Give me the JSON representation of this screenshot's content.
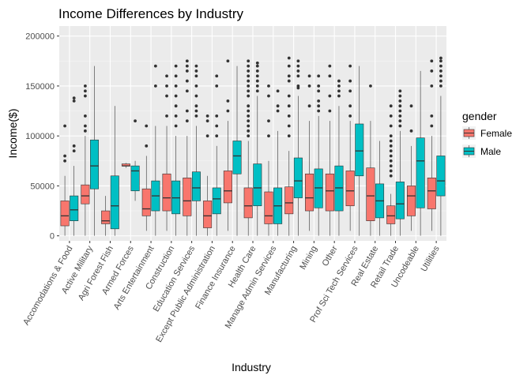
{
  "chart_data": {
    "type": "boxplot",
    "title": "Income Differences by Industry",
    "xlabel": "Industry",
    "ylabel": "Income($)",
    "ylim": [
      -5000,
      210000
    ],
    "yticks": [
      0,
      50000,
      100000,
      150000,
      200000
    ],
    "grid": true,
    "legend_title": "gender",
    "legend_position": "right",
    "categories": [
      "Accomodations & Food",
      "Active Military",
      "Agri Forest Fish",
      "Armed Forces",
      "Arts Entertainment",
      "Construction",
      "Education Services",
      "Except Public Administration",
      "Finance Insurance",
      "Health Care",
      "Manage Admin Services",
      "Manufacturing",
      "Mining",
      "Other",
      "Prof Sci Tech Services",
      "Real Estate",
      "Retail Trade",
      "Uncodeable",
      "Utilities"
    ],
    "series": [
      {
        "name": "Female",
        "color": "#F8766D",
        "boxes": [
          {
            "whisker_low": 0,
            "q1": 10000,
            "median": 20000,
            "q3": 35000,
            "whisker_high": 60000,
            "outliers": [
              75000,
              80000,
              110000
            ]
          },
          {
            "whisker_low": 0,
            "q1": 32000,
            "median": 40000,
            "q3": 51000,
            "whisker_high": 100000,
            "outliers": [
              105000,
              110000,
              120000,
              140000,
              145000,
              150000
            ]
          },
          {
            "whisker_low": 0,
            "q1": 12000,
            "median": 15000,
            "q3": 25000,
            "whisker_high": 40000,
            "outliers": []
          },
          {
            "whisker_low": 68000,
            "q1": 70000,
            "median": 70000,
            "q3": 72000,
            "whisker_high": 73000,
            "outliers": []
          },
          {
            "whisker_low": 5000,
            "q1": 20000,
            "median": 27000,
            "q3": 47000,
            "whisker_high": 80000,
            "outliers": [
              90000,
              110000
            ]
          },
          {
            "whisker_low": 5000,
            "q1": 25000,
            "median": 38000,
            "q3": 62000,
            "whisker_high": 110000,
            "outliers": [
              120000,
              140000,
              150000,
              160000
            ]
          },
          {
            "whisker_low": 0,
            "q1": 20000,
            "median": 35000,
            "q3": 58000,
            "whisker_high": 100000,
            "outliers": [
              115000,
              125000,
              145000,
              155000,
              165000,
              170000,
              175000
            ]
          },
          {
            "whisker_low": 0,
            "q1": 8000,
            "median": 20000,
            "q3": 35000,
            "whisker_high": 60000,
            "outliers": [
              100000,
              115000,
              120000
            ]
          },
          {
            "whisker_low": 5000,
            "q1": 33000,
            "median": 45000,
            "q3": 65000,
            "whisker_high": 115000,
            "outliers": [
              125000,
              135000,
              175000
            ]
          },
          {
            "whisker_low": 0,
            "q1": 18000,
            "median": 30000,
            "q3": 48000,
            "whisker_high": 95000,
            "outliers": [
              100000,
              105000,
              110000,
              115000,
              120000,
              125000,
              130000,
              140000,
              145000,
              150000,
              155000,
              160000,
              165000,
              170000,
              175000
            ]
          },
          {
            "whisker_low": 0,
            "q1": 12000,
            "median": 20000,
            "q3": 44000,
            "whisker_high": 75000,
            "outliers": [
              100000,
              115000,
              140000,
              150000
            ]
          },
          {
            "whisker_low": 0,
            "q1": 22000,
            "median": 33000,
            "q3": 49000,
            "whisker_high": 85000,
            "outliers": [
              100000,
              110000,
              120000,
              130000,
              140000,
              155000,
              160000,
              170000,
              178000
            ]
          },
          {
            "whisker_low": 5000,
            "q1": 25000,
            "median": 38000,
            "q3": 62000,
            "whisker_high": 115000,
            "outliers": [
              130000,
              150000,
              160000
            ]
          },
          {
            "whisker_low": 0,
            "q1": 25000,
            "median": 45000,
            "q3": 62000,
            "whisker_high": 115000,
            "outliers": [
              125000,
              140000,
              160000,
              170000
            ]
          },
          {
            "whisker_low": 5000,
            "q1": 30000,
            "median": 45000,
            "q3": 65000,
            "whisker_high": 115000,
            "outliers": [
              120000,
              130000,
              145000,
              155000,
              170000
            ]
          },
          {
            "whisker_low": 0,
            "q1": 15000,
            "median": 40000,
            "q3": 68000,
            "whisker_high": 115000,
            "outliers": [
              150000
            ]
          },
          {
            "whisker_low": 0,
            "q1": 12000,
            "median": 20000,
            "q3": 30000,
            "whisker_high": 42000,
            "outliers": [
              60000,
              65000,
              70000,
              75000,
              80000,
              85000,
              90000,
              95000,
              100000,
              110000,
              120000,
              130000
            ]
          },
          {
            "whisker_low": 5000,
            "q1": 20000,
            "median": 40000,
            "q3": 50000,
            "whisker_high": 90000,
            "outliers": [
              105000,
              130000
            ]
          },
          {
            "whisker_low": 5000,
            "q1": 27000,
            "median": 45000,
            "q3": 58000,
            "whisker_high": 100000,
            "outliers": [
              110000,
              120000,
              150000,
              165000,
              175000
            ]
          }
        ]
      },
      {
        "name": "Male",
        "color": "#00BFC4",
        "boxes": [
          {
            "whisker_low": 0,
            "q1": 15000,
            "median": 26000,
            "q3": 40000,
            "whisker_high": 70000,
            "outliers": [
              85000,
              90000,
              135000,
              138000
            ]
          },
          {
            "whisker_low": 0,
            "q1": 47000,
            "median": 70000,
            "q3": 96000,
            "whisker_high": 170000,
            "outliers": []
          },
          {
            "whisker_low": 0,
            "q1": 7000,
            "median": 30000,
            "q3": 60000,
            "whisker_high": 130000,
            "outliers": []
          },
          {
            "whisker_low": 35000,
            "q1": 45000,
            "median": 65000,
            "q3": 70000,
            "whisker_high": 75000,
            "outliers": [
              115000
            ]
          },
          {
            "whisker_low": 0,
            "q1": 25000,
            "median": 40000,
            "q3": 55000,
            "whisker_high": 110000,
            "outliers": [
              150000,
              170000
            ]
          },
          {
            "whisker_low": 0,
            "q1": 22000,
            "median": 38000,
            "q3": 55000,
            "whisker_high": 100000,
            "outliers": [
              110000,
              120000,
              130000,
              140000,
              150000,
              160000,
              170000
            ]
          },
          {
            "whisker_low": 0,
            "q1": 35000,
            "median": 48000,
            "q3": 64000,
            "whisker_high": 110000,
            "outliers": [
              120000,
              125000,
              130000,
              140000,
              150000,
              160000,
              165000,
              170000
            ]
          },
          {
            "whisker_low": 0,
            "q1": 22000,
            "median": 37000,
            "q3": 48000,
            "whisker_high": 90000,
            "outliers": [
              100000,
              110000,
              120000,
              150000,
              160000
            ]
          },
          {
            "whisker_low": 0,
            "q1": 62000,
            "median": 80000,
            "q3": 95000,
            "whisker_high": 170000,
            "outliers": []
          },
          {
            "whisker_low": 0,
            "q1": 30000,
            "median": 48000,
            "q3": 72000,
            "whisker_high": 140000,
            "outliers": [
              145000,
              150000,
              155000,
              160000,
              165000,
              170000,
              173000
            ]
          },
          {
            "whisker_low": 0,
            "q1": 12000,
            "median": 30000,
            "q3": 48000,
            "whisker_high": 105000,
            "outliers": [
              125000,
              130000,
              145000
            ]
          },
          {
            "whisker_low": 0,
            "q1": 38000,
            "median": 55000,
            "q3": 78000,
            "whisker_high": 140000,
            "outliers": [
              148000,
              150000,
              160000,
              165000,
              170000,
              175000
            ]
          },
          {
            "whisker_low": 0,
            "q1": 28000,
            "median": 48000,
            "q3": 67000,
            "whisker_high": 120000,
            "outliers": [
              125000,
              130000,
              135000,
              145000,
              150000,
              160000
            ]
          },
          {
            "whisker_low": 0,
            "q1": 25000,
            "median": 48000,
            "q3": 70000,
            "whisker_high": 130000,
            "outliers": [
              140000,
              145000,
              150000,
              155000
            ]
          },
          {
            "whisker_low": 0,
            "q1": 60000,
            "median": 85000,
            "q3": 112000,
            "whisker_high": 170000,
            "outliers": []
          },
          {
            "whisker_low": 0,
            "q1": 18000,
            "median": 35000,
            "q3": 52000,
            "whisker_high": 95000,
            "outliers": []
          },
          {
            "whisker_low": 0,
            "q1": 17000,
            "median": 32000,
            "q3": 54000,
            "whisker_high": 105000,
            "outliers": [
              110000,
              115000,
              120000,
              125000,
              130000,
              135000,
              140000,
              145000
            ]
          },
          {
            "whisker_low": 0,
            "q1": 28000,
            "median": 75000,
            "q3": 98000,
            "whisker_high": 165000,
            "outliers": []
          },
          {
            "whisker_low": 0,
            "q1": 40000,
            "median": 55000,
            "q3": 80000,
            "whisker_high": 140000,
            "outliers": [
              150000,
              155000,
              160000,
              165000,
              170000,
              175000,
              178000
            ]
          }
        ]
      }
    ]
  }
}
